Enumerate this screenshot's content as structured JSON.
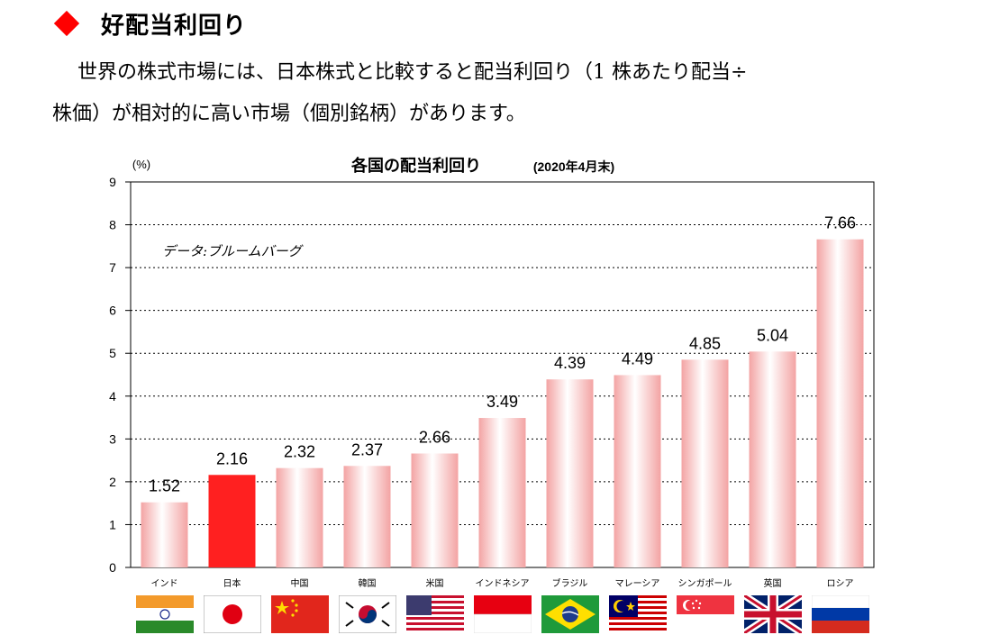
{
  "heading": {
    "title": "好配当利回り",
    "bullet_color": "#ff0000"
  },
  "intro": {
    "line1": "世界の株式市場には、日本株式と比較すると配当利回り（1 株あたり配当÷",
    "line2": "株価）が相対的に高い市場（個別銘柄）があります。"
  },
  "chart_data": {
    "type": "bar",
    "title": "各国の配当利回り",
    "title_note": "(2020年4月末)",
    "ylabel": "(%)",
    "ylim": [
      0,
      9
    ],
    "yticks": [
      "0",
      "1",
      "2",
      "3",
      "4",
      "5",
      "6",
      "7",
      "8",
      "9"
    ],
    "grid": "dotted-horizontal",
    "annotation": "データ:ブルームバーグ",
    "categories": [
      "インド",
      "日本",
      "中国",
      "韓国",
      "米国",
      "インドネシア",
      "ブラジル",
      "マレーシア",
      "シンガポール",
      "英国",
      "ロシア"
    ],
    "values": [
      1.52,
      2.16,
      2.32,
      2.37,
      2.66,
      3.49,
      4.39,
      4.49,
      4.85,
      5.04,
      7.66
    ],
    "value_labels": [
      "1.52",
      "2.16",
      "2.32",
      "2.37",
      "2.66",
      "3.49",
      "4.39",
      "4.49",
      "4.85",
      "5.04",
      "7.66"
    ],
    "highlight_index": 1,
    "bar_color": "#f4a6a6",
    "highlight_color": "#ff2020"
  },
  "flags": [
    "india-flag",
    "japan-flag",
    "china-flag",
    "korea-flag",
    "usa-flag",
    "indonesia-flag",
    "brazil-flag",
    "malaysia-flag",
    "singapore-flag",
    "uk-flag",
    "russia-flag"
  ]
}
